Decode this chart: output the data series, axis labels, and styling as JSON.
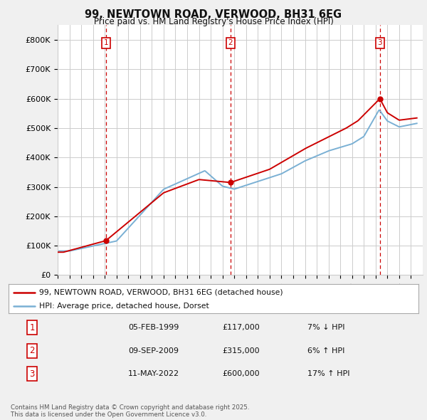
{
  "title": "99, NEWTOWN ROAD, VERWOOD, BH31 6EG",
  "subtitle": "Price paid vs. HM Land Registry's House Price Index (HPI)",
  "legend_line1": "99, NEWTOWN ROAD, VERWOOD, BH31 6EG (detached house)",
  "legend_line2": "HPI: Average price, detached house, Dorset",
  "sale_color": "#cc0000",
  "hpi_color": "#7ab0d4",
  "background_color": "#f0f0f0",
  "plot_bg_color": "#ffffff",
  "ylim": [
    0,
    850000
  ],
  "yticks": [
    0,
    100000,
    200000,
    300000,
    400000,
    500000,
    600000,
    700000,
    800000
  ],
  "ytick_labels": [
    "£0",
    "£100K",
    "£200K",
    "£300K",
    "£400K",
    "£500K",
    "£600K",
    "£700K",
    "£800K"
  ],
  "sale_annotations": [
    {
      "num": "1",
      "date": "05-FEB-1999",
      "price": "£117,000",
      "hpi": "7% ↓ HPI"
    },
    {
      "num": "2",
      "date": "09-SEP-2009",
      "price": "£315,000",
      "hpi": "6% ↑ HPI"
    },
    {
      "num": "3",
      "date": "11-MAY-2022",
      "price": "£600,000",
      "hpi": "17% ↑ HPI"
    }
  ],
  "footnote": "Contains HM Land Registry data © Crown copyright and database right 2025.\nThis data is licensed under the Open Government Licence v3.0.",
  "sale_dates": [
    1999.09,
    2009.68,
    2022.36
  ],
  "sale_prices": [
    117000,
    315000,
    600000
  ]
}
